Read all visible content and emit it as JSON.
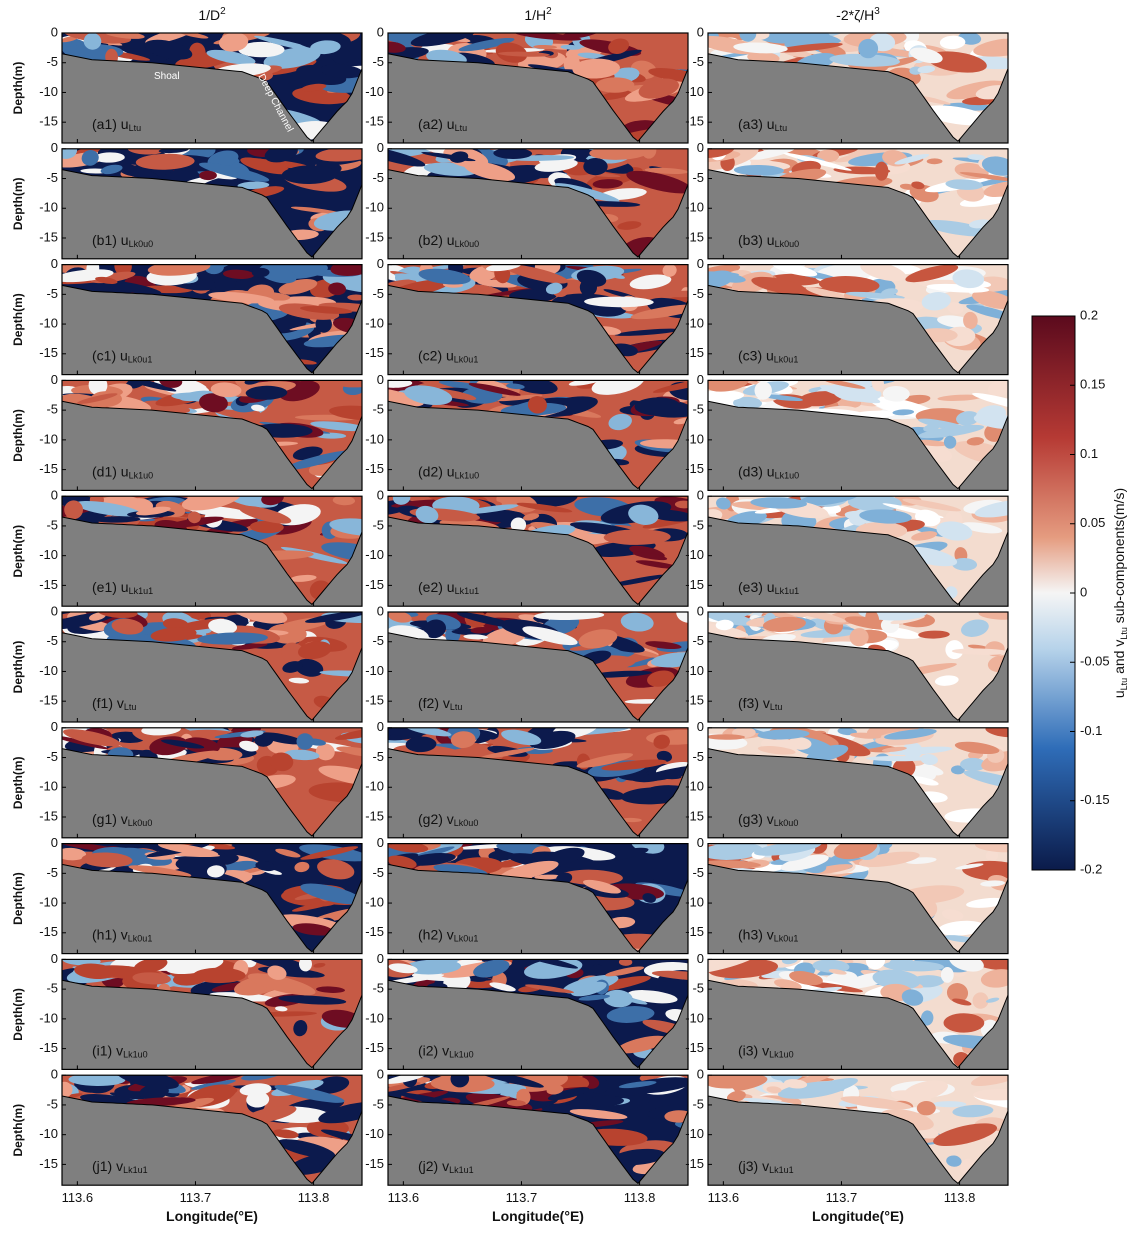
{
  "chart_data": {
    "type": "contour",
    "columns": [
      {
        "title": "1/D",
        "sup": "2"
      },
      {
        "title": "1/H",
        "sup": "2"
      },
      {
        "title": "-2*ζ/H",
        "sup": "3"
      }
    ],
    "panels": [
      [
        {
          "prefix": "(a1) u",
          "sub": "Ltu"
        },
        {
          "prefix": "(a2) u",
          "sub": "Ltu"
        },
        {
          "prefix": "(a3) u",
          "sub": "Ltu"
        }
      ],
      [
        {
          "prefix": "(b1) u",
          "sub": "Lk0u0"
        },
        {
          "prefix": "(b2) u",
          "sub": "Lk0u0"
        },
        {
          "prefix": "(b3) u",
          "sub": "Lk0u0"
        }
      ],
      [
        {
          "prefix": "(c1) u",
          "sub": "Lk0u1"
        },
        {
          "prefix": "(c2) u",
          "sub": "Lk0u1"
        },
        {
          "prefix": "(c3) u",
          "sub": "Lk0u1"
        }
      ],
      [
        {
          "prefix": "(d1) u",
          "sub": "Lk1u0"
        },
        {
          "prefix": "(d2) u",
          "sub": "Lk1u0"
        },
        {
          "prefix": "(d3) u",
          "sub": "Lk1u0"
        }
      ],
      [
        {
          "prefix": "(e1) u",
          "sub": "Lk1u1"
        },
        {
          "prefix": "(e2) u",
          "sub": "Lk1u1"
        },
        {
          "prefix": "(e3) u",
          "sub": "Lk1u1"
        }
      ],
      [
        {
          "prefix": "(f1) v",
          "sub": "Ltu"
        },
        {
          "prefix": "(f2) v",
          "sub": "Ltu"
        },
        {
          "prefix": "(f3) v",
          "sub": "Ltu"
        }
      ],
      [
        {
          "prefix": "(g1) v",
          "sub": "Lk0u0"
        },
        {
          "prefix": "(g2) v",
          "sub": "Lk0u0"
        },
        {
          "prefix": "(g3) v",
          "sub": "Lk0u0"
        }
      ],
      [
        {
          "prefix": "(h1) v",
          "sub": "Lk0u1"
        },
        {
          "prefix": "(h2) v",
          "sub": "Lk0u1"
        },
        {
          "prefix": "(h3) v",
          "sub": "Lk0u1"
        }
      ],
      [
        {
          "prefix": "(i1) v",
          "sub": "Lk1u0"
        },
        {
          "prefix": "(i2) v",
          "sub": "Lk1u0"
        },
        {
          "prefix": "(i3) v",
          "sub": "Lk1u0"
        }
      ],
      [
        {
          "prefix": "(j1) v",
          "sub": "Lk1u1"
        },
        {
          "prefix": "(j2) v",
          "sub": "Lk1u1"
        },
        {
          "prefix": "(j3) v",
          "sub": "Lk1u1"
        }
      ]
    ],
    "annotations": [
      "Shoal",
      "Deep Channel"
    ],
    "y_axis": {
      "label": "Depth(m)",
      "ylim": [
        -18.5,
        0
      ],
      "yticks": [
        0,
        -5,
        -10,
        -15
      ]
    },
    "x_axis": {
      "label": "Longitude(°E)",
      "xlim": [
        113.587,
        113.841
      ],
      "xticks": [
        113.6,
        113.7,
        113.8
      ]
    },
    "colorbar": {
      "lim": [
        -0.2,
        0.2
      ],
      "ticks": [
        0.2,
        0.15,
        0.1,
        0.05,
        0,
        -0.05,
        -0.1,
        -0.15,
        -0.2
      ],
      "label_parts": [
        {
          "text": "u"
        },
        {
          "sub": "Ltu"
        },
        {
          "text": " and v"
        },
        {
          "sub": "Ltu"
        },
        {
          "text": " sub-components(m/s)"
        }
      ]
    }
  }
}
